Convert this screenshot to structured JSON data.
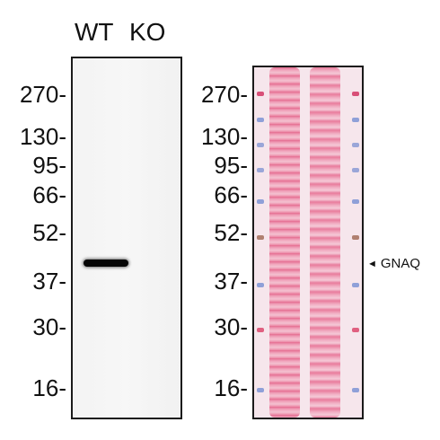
{
  "lanes": {
    "wt": "WT",
    "ko": "KO"
  },
  "markers": [
    "270-",
    "130-",
    "95-",
    "66-",
    "52-",
    "37-",
    "30-",
    "16-"
  ],
  "target": {
    "arrow": "◄",
    "name": "GNAQ"
  },
  "colors": {
    "ponceau": "#e8628e",
    "background": "#ffffff",
    "band": "#050505"
  }
}
